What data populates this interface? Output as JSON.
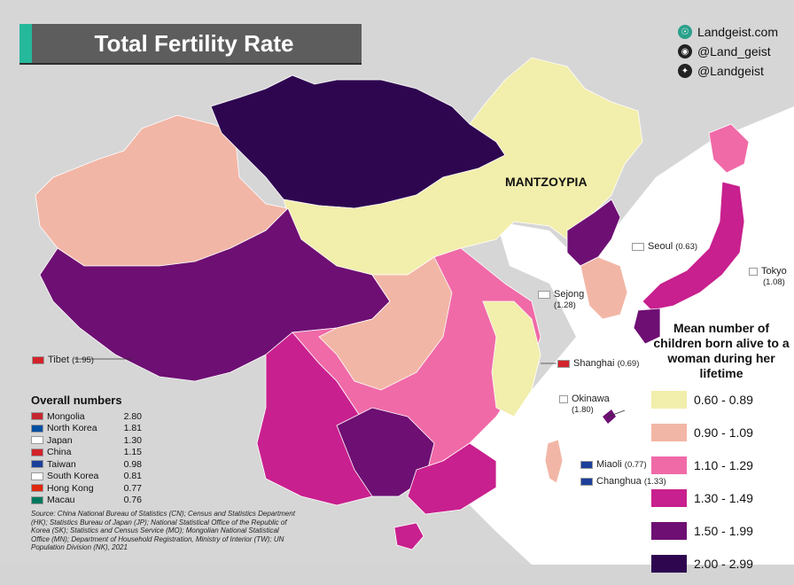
{
  "title": "Total Fertility Rate",
  "social": {
    "website": "Landgeist.com",
    "instagram": "@Land_geist",
    "twitter": "@Landgeist"
  },
  "map_label": "MANTZOYPIA",
  "callouts": [
    {
      "name": "Seoul",
      "value": "(0.63)"
    },
    {
      "name": "Tokyo",
      "value": "(1.08)"
    },
    {
      "name": "Sejong",
      "value": "(1.28)"
    },
    {
      "name": "Tibet",
      "value": "(1.95)"
    },
    {
      "name": "Shanghai",
      "value": "(0.69)"
    },
    {
      "name": "Okinawa",
      "value": "(1.80)"
    },
    {
      "name": "Miaoli",
      "value": "(0.77)"
    },
    {
      "name": "Changhua",
      "value": "(1.33)"
    }
  ],
  "legend": {
    "title": "Mean number of children born alive to a woman during her lifetime",
    "items": [
      {
        "label": "0.60 - 0.89",
        "color": "#f2eeab"
      },
      {
        "label": "0.90 - 1.09",
        "color": "#f2b6a6"
      },
      {
        "label": "1.10 - 1.29",
        "color": "#f06aa8"
      },
      {
        "label": "1.30 - 1.49",
        "color": "#c8208e"
      },
      {
        "label": "1.50 - 1.99",
        "color": "#6e0f73"
      },
      {
        "label": "2.00 - 2.99",
        "color": "#2e0650"
      }
    ]
  },
  "overall": {
    "title": "Overall numbers",
    "rows": [
      {
        "name": "Mongolia",
        "value": "2.80"
      },
      {
        "name": "North Korea",
        "value": "1.81"
      },
      {
        "name": "Japan",
        "value": "1.30"
      },
      {
        "name": "China",
        "value": "1.15"
      },
      {
        "name": "Taiwan",
        "value": "0.98"
      },
      {
        "name": "South Korea",
        "value": "0.81"
      },
      {
        "name": "Hong Kong",
        "value": "0.77"
      },
      {
        "name": "Macau",
        "value": "0.76"
      }
    ]
  },
  "source": "Source: China National Bureau of Statistics (CN); Census and Statistics Department (HK); Statistics Bureau of Japan (JP); National Statistical Office of the Republic of Korea (SK); Statistics and Census Service (MO); Mongolian National Statistical Office (MN); Department of Household Registration, Ministry of Interior (TW); UN Population Division (NK), 2021",
  "colors": {
    "background": "#d4d4d4",
    "title_bg": "#5d5d5d",
    "accent": "#25b89a"
  }
}
